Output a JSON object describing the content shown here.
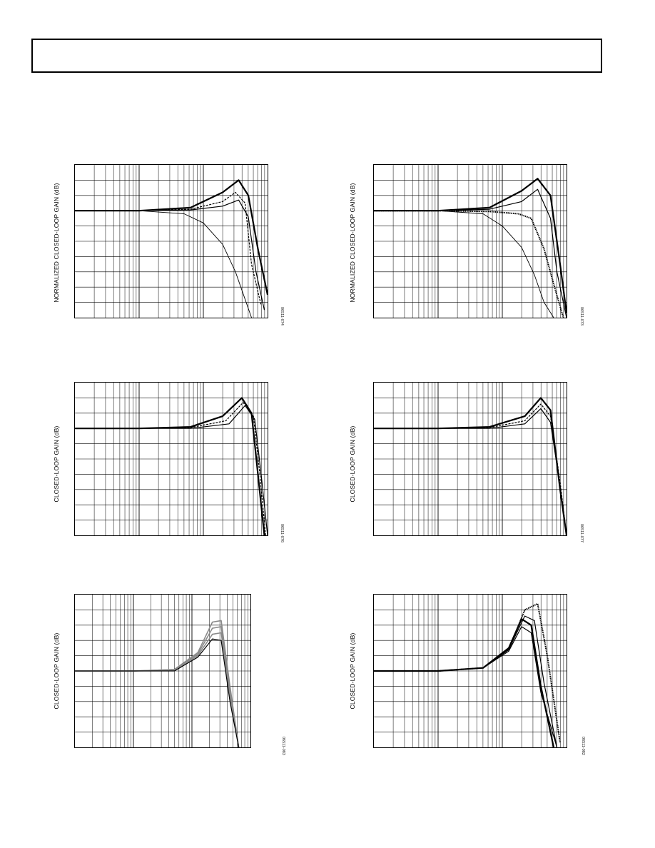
{
  "page": {
    "header_text": ""
  },
  "colors": {
    "curve": "#000000",
    "grid": "#000000",
    "gray_curve": "#8a8a8a"
  },
  "charts": [
    {
      "id": "fig-074",
      "ylabel": "NORMALIZED CLOSED-LOOP GAIN (dB)",
      "figure_id": "06511-074"
    },
    {
      "id": "fig-073",
      "ylabel": "NORMALIZED CLOSED-LOOP GAIN (dB)",
      "figure_id": "06511-073"
    },
    {
      "id": "fig-076",
      "ylabel": "CLOSED-LOOP GAIN (dB)",
      "figure_id": "06511-076"
    },
    {
      "id": "fig-077",
      "ylabel": "CLOSED-LOOP GAIN (dB)",
      "figure_id": "06511-077"
    },
    {
      "id": "fig-083",
      "ylabel": "CLOSED-LOOP GAIN (dB)",
      "figure_id": "06511-083"
    },
    {
      "id": "fig-082",
      "ylabel": "CLOSED-LOOP GAIN (dB)",
      "figure_id": "06511-082"
    }
  ],
  "chart_data": [
    {
      "type": "line",
      "title": "",
      "xlabel": "",
      "ylabel": "NORMALIZED CLOSED-LOOP GAIN (dB)",
      "xscale": "log",
      "xlim": [
        0,
        3
      ],
      "ylim": [
        0,
        10
      ],
      "grid": true,
      "legend": "none",
      "series": [
        {
          "x": [
            0,
            1,
            1.8,
            2.3,
            2.55,
            2.7,
            2.85,
            3.0
          ],
          "y": [
            7.0,
            7.0,
            7.2,
            8.2,
            9.0,
            8.0,
            4.5,
            1.5
          ],
          "style": "solid-bold"
        },
        {
          "x": [
            0,
            1,
            1.8,
            2.3,
            2.5,
            2.65,
            2.75,
            2.9
          ],
          "y": [
            7.0,
            7.0,
            7.1,
            7.6,
            8.2,
            7.5,
            3.5,
            0.8
          ],
          "style": "dashed"
        },
        {
          "x": [
            0,
            1,
            1.8,
            2.3,
            2.55,
            2.7,
            2.82,
            2.95
          ],
          "y": [
            7.0,
            7.0,
            7.05,
            7.3,
            7.7,
            6.6,
            3.0,
            0.5
          ],
          "style": "solid"
        },
        {
          "x": [
            0,
            1,
            1.7,
            2.0,
            2.3,
            2.5,
            2.65,
            2.75
          ],
          "y": [
            7.0,
            7.0,
            6.8,
            6.2,
            4.8,
            3.0,
            1.2,
            0.0
          ],
          "style": "thin"
        }
      ]
    },
    {
      "type": "line",
      "title": "",
      "xlabel": "",
      "ylabel": "NORMALIZED CLOSED-LOOP GAIN (dB)",
      "xscale": "log",
      "xlim": [
        0,
        3
      ],
      "ylim": [
        0,
        10
      ],
      "grid": true,
      "legend": "none",
      "series": [
        {
          "x": [
            0,
            1,
            1.8,
            2.3,
            2.55,
            2.75,
            2.9,
            3.0
          ],
          "y": [
            7.0,
            7.0,
            7.2,
            8.3,
            9.1,
            8.0,
            3.5,
            0.3
          ],
          "style": "solid-bold"
        },
        {
          "x": [
            0,
            1,
            1.8,
            2.3,
            2.55,
            2.75,
            2.85,
            3.0
          ],
          "y": [
            7.0,
            7.0,
            7.1,
            7.6,
            8.4,
            6.5,
            3.0,
            0.0
          ],
          "style": "solid"
        },
        {
          "x": [
            0,
            1,
            1.8,
            2.25,
            2.45,
            2.65,
            2.8,
            2.95
          ],
          "y": [
            7.0,
            7.0,
            6.95,
            6.8,
            6.5,
            4.5,
            2.2,
            0.0
          ],
          "style": "dotted"
        },
        {
          "x": [
            0,
            1,
            1.7,
            2.0,
            2.3,
            2.5,
            2.65,
            2.8
          ],
          "y": [
            7.0,
            7.0,
            6.8,
            6.0,
            4.6,
            2.8,
            1.0,
            0.0
          ],
          "style": "thin"
        }
      ]
    },
    {
      "type": "line",
      "title": "",
      "xlabel": "",
      "ylabel": "CLOSED-LOOP GAIN (dB)",
      "xscale": "log",
      "xlim": [
        0,
        3
      ],
      "ylim": [
        0,
        10
      ],
      "grid": true,
      "legend": "none",
      "series": [
        {
          "x": [
            0,
            1,
            1.8,
            2.3,
            2.6,
            2.75,
            2.85,
            2.95
          ],
          "y": [
            7.0,
            7.0,
            7.1,
            7.8,
            9.0,
            8.0,
            4.0,
            0.0
          ],
          "style": "solid-bold"
        },
        {
          "x": [
            0,
            1,
            1.8,
            2.35,
            2.62,
            2.78,
            2.88,
            2.97
          ],
          "y": [
            7.0,
            7.0,
            7.05,
            7.5,
            8.7,
            7.8,
            4.0,
            0.0
          ],
          "style": "dashed"
        },
        {
          "x": [
            0,
            1,
            1.8,
            2.4,
            2.65,
            2.8,
            2.9,
            3.0
          ],
          "y": [
            7.0,
            7.0,
            7.0,
            7.3,
            8.5,
            7.6,
            4.0,
            0.0
          ],
          "style": "solid"
        }
      ]
    },
    {
      "type": "line",
      "title": "",
      "xlabel": "",
      "ylabel": "CLOSED-LOOP GAIN (dB)",
      "xscale": "log",
      "xlim": [
        0,
        3
      ],
      "ylim": [
        0,
        10
      ],
      "grid": true,
      "legend": "none",
      "series": [
        {
          "x": [
            0,
            1,
            1.8,
            2.35,
            2.6,
            2.75,
            2.9,
            3.0
          ],
          "y": [
            7.0,
            7.0,
            7.1,
            7.8,
            9.0,
            8.2,
            3.0,
            0.0
          ],
          "style": "solid-bold"
        },
        {
          "x": [
            0,
            1,
            1.8,
            2.35,
            2.6,
            2.75,
            2.9,
            3.0
          ],
          "y": [
            7.0,
            7.0,
            7.05,
            7.5,
            8.6,
            7.8,
            3.5,
            0.0
          ],
          "style": "dashed"
        },
        {
          "x": [
            0,
            1,
            1.8,
            2.35,
            2.6,
            2.75,
            2.9,
            3.0
          ],
          "y": [
            7.0,
            7.0,
            7.0,
            7.3,
            8.3,
            7.4,
            3.2,
            0.0
          ],
          "style": "solid"
        }
      ]
    },
    {
      "type": "line",
      "title": "",
      "xlabel": "",
      "ylabel": "CLOSED-LOOP GAIN (dB)",
      "xscale": "log",
      "xlim": [
        0,
        3
      ],
      "ylim": [
        0,
        10
      ],
      "grid": true,
      "legend": "none",
      "series": [
        {
          "x": [
            0,
            1,
            1.7,
            2.1,
            2.35,
            2.5,
            2.65,
            2.8
          ],
          "y": [
            5.0,
            5.0,
            5.1,
            6.2,
            8.2,
            8.3,
            4.0,
            0.0
          ],
          "style": "gray"
        },
        {
          "x": [
            0,
            1,
            1.7,
            2.1,
            2.35,
            2.5,
            2.65,
            2.8
          ],
          "y": [
            5.0,
            5.0,
            5.1,
            6.1,
            7.8,
            7.9,
            3.7,
            0.0
          ],
          "style": "gray"
        },
        {
          "x": [
            0,
            1,
            1.7,
            2.1,
            2.35,
            2.5,
            2.65,
            2.8
          ],
          "y": [
            5.0,
            5.0,
            5.05,
            6.0,
            7.4,
            7.5,
            3.4,
            0.0
          ],
          "style": "gray"
        },
        {
          "x": [
            0,
            1,
            1.7,
            2.1,
            2.35,
            2.5,
            2.65,
            2.8
          ],
          "y": [
            5.0,
            5.0,
            5.0,
            5.9,
            7.1,
            7.0,
            3.0,
            0.0
          ],
          "style": "solid"
        }
      ]
    },
    {
      "type": "line",
      "title": "",
      "xlabel": "",
      "ylabel": "CLOSED-LOOP GAIN (dB)",
      "xscale": "log",
      "xlim": [
        0,
        3
      ],
      "ylim": [
        0,
        10
      ],
      "grid": true,
      "legend": "none",
      "series": [
        {
          "x": [
            0,
            1,
            1.7,
            2.1,
            2.3,
            2.45,
            2.6,
            2.8
          ],
          "y": [
            5.0,
            5.0,
            5.2,
            6.5,
            8.4,
            8.0,
            4.0,
            0.0
          ],
          "style": "solid-bold"
        },
        {
          "x": [
            0,
            1,
            1.7,
            2.1,
            2.35,
            2.55,
            2.7,
            2.9
          ],
          "y": [
            5.0,
            5.0,
            5.2,
            6.4,
            9.0,
            9.4,
            6.0,
            0.3
          ],
          "style": "dotted"
        },
        {
          "x": [
            0,
            1,
            1.7,
            2.1,
            2.35,
            2.5,
            2.65,
            2.85
          ],
          "y": [
            5.0,
            5.0,
            5.2,
            6.4,
            8.6,
            8.3,
            4.2,
            0.0
          ],
          "style": "solid"
        },
        {
          "x": [
            0,
            1,
            1.7,
            2.1,
            2.3,
            2.45,
            2.6,
            2.85
          ],
          "y": [
            5.0,
            5.0,
            5.2,
            6.3,
            7.9,
            7.5,
            3.6,
            0.0
          ],
          "style": "solid"
        }
      ]
    }
  ]
}
